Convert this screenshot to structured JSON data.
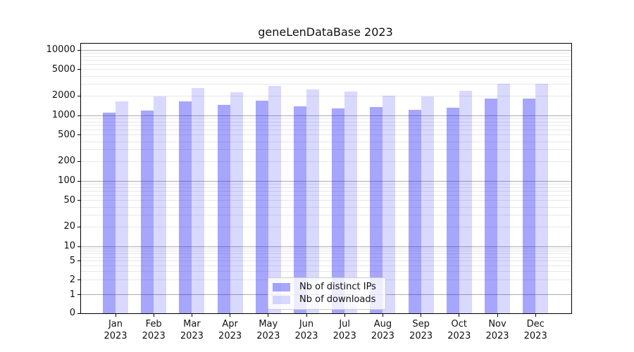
{
  "title": "geneLenDataBase 2023",
  "chart_data": {
    "type": "bar",
    "categories": [
      "Jan",
      "Feb",
      "Mar",
      "Apr",
      "May",
      "Jun",
      "Jul",
      "Aug",
      "Sep",
      "Oct",
      "Nov",
      "Dec"
    ],
    "category_year_line": "2023",
    "series": [
      {
        "name": "Nb of distinct IPs",
        "color_hex": "#0000FF",
        "css_color": "rgba(0,0,255,0.35)",
        "values": [
          1100,
          1190,
          1640,
          1450,
          1680,
          1380,
          1290,
          1360,
          1220,
          1320,
          1820,
          1820
        ]
      },
      {
        "name": "Nb of downloads",
        "color_hex": "#0000FF",
        "css_color": "rgba(0,0,255,0.15)",
        "values": [
          1650,
          1960,
          2630,
          2260,
          2810,
          2500,
          2310,
          2000,
          1950,
          2360,
          3070,
          3070
        ]
      }
    ],
    "yscale": "symlog",
    "ylim": [
      0,
      12500
    ],
    "yticks": [
      0,
      1,
      2,
      5,
      10,
      20,
      50,
      100,
      200,
      500,
      1000,
      2000,
      5000,
      10000
    ],
    "grid": "on",
    "legend_position": "lower center",
    "axis_color_hex": "#000000",
    "major_grid_color_hex": "#ADADAD",
    "minor_grid_color_hex": "#E8E8E8"
  }
}
